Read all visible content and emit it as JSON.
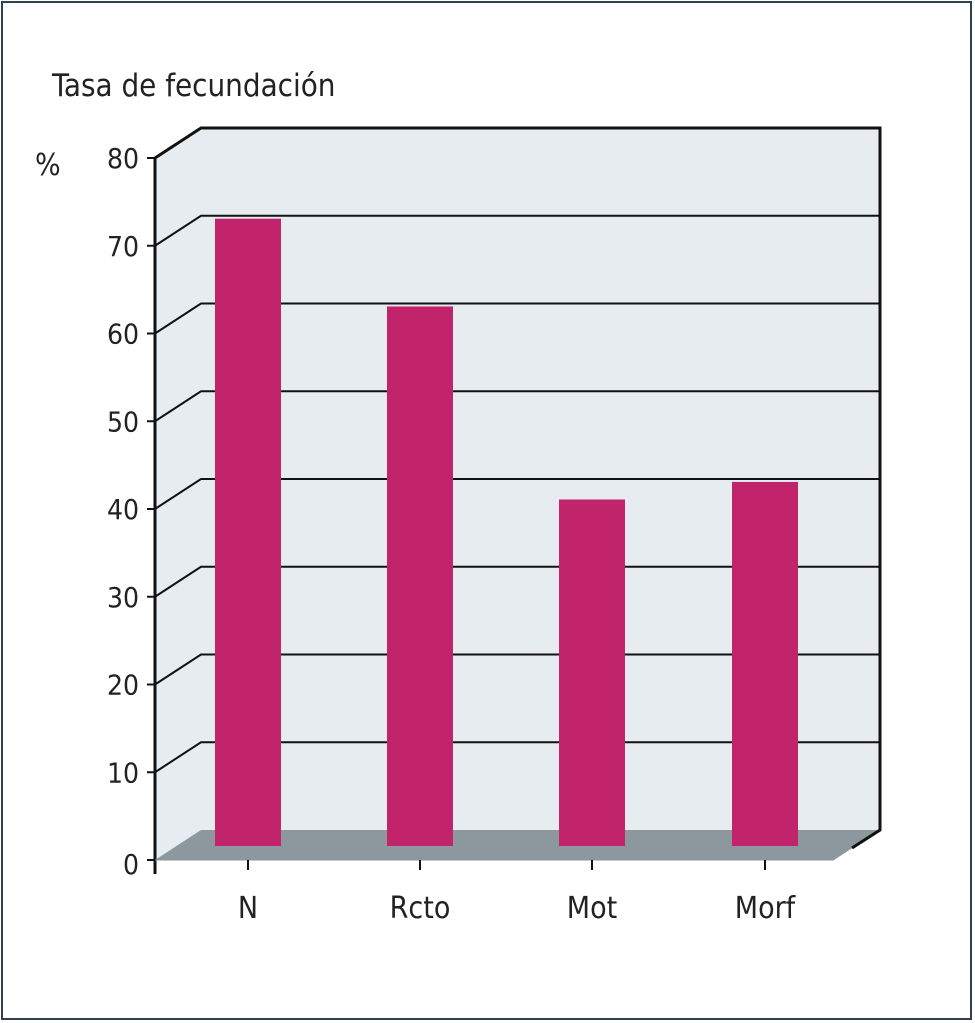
{
  "chart_data": {
    "type": "bar",
    "title": "Tasa de fecundación",
    "ylabel": "%",
    "xlabel": "",
    "categories": [
      "N",
      "Rcto",
      "Mot",
      "Morf"
    ],
    "values": [
      72,
      62,
      40,
      42
    ],
    "ylim": [
      0,
      80
    ],
    "yticks": [
      "0",
      "10",
      "20",
      "30",
      "40",
      "50",
      "60",
      "70",
      "80"
    ],
    "grid": true,
    "legend": "none",
    "colors": {
      "bar": "#c2246b",
      "wall": "#e7ecf0",
      "floor": "#8c989e",
      "grid": "#111111"
    }
  }
}
